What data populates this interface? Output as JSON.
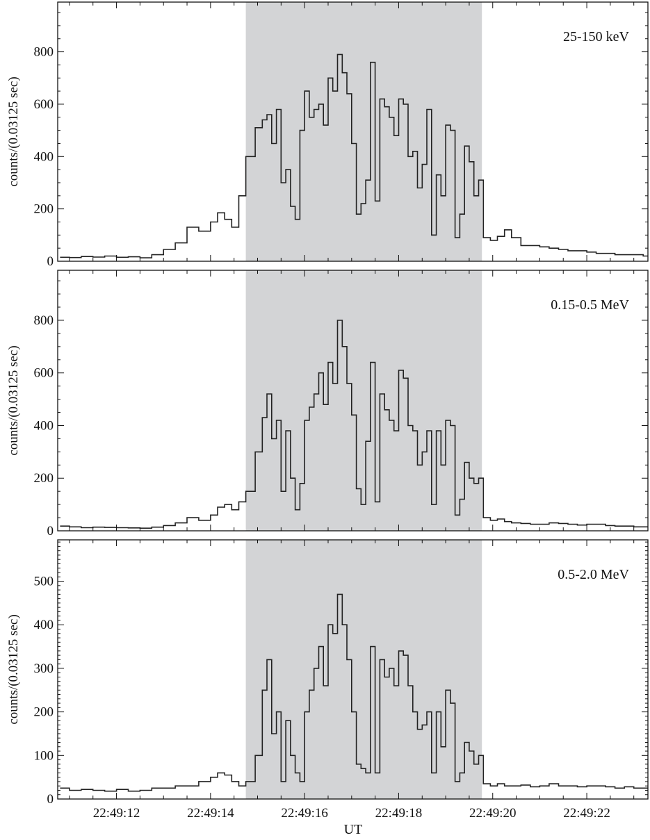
{
  "figure": {
    "ylabel": "counts/(0.03125 sec)",
    "xlabel": "UT",
    "x_tick_labels": [
      "22:49:12",
      "22:49:14",
      "22:49:16",
      "22:49:18",
      "22:49:20",
      "22:49:22"
    ],
    "highlight_color": "#d3d4d6",
    "line_color": "#222222"
  },
  "chart_data": [
    {
      "type": "line",
      "panel_label": "25-150 keV",
      "x_unit": "seconds after 22:49:00 UT",
      "xlim": [
        10.75,
        23.3
      ],
      "ylim": [
        0,
        990
      ],
      "yticks": [
        0,
        200,
        400,
        600,
        800
      ],
      "shaded_interval": [
        14.75,
        19.77
      ],
      "series": [
        {
          "x": [
            10.8,
            11.0,
            11.25,
            11.5,
            11.75,
            12.0,
            12.25,
            12.5,
            12.75,
            13.0,
            13.25,
            13.5,
            13.75,
            14.0,
            14.15,
            14.3,
            14.45,
            14.6,
            14.75,
            14.95,
            15.1,
            15.2,
            15.3,
            15.4,
            15.5,
            15.6,
            15.7,
            15.8,
            15.9,
            16.0,
            16.1,
            16.2,
            16.3,
            16.4,
            16.5,
            16.6,
            16.7,
            16.8,
            16.9,
            17.0,
            17.1,
            17.2,
            17.3,
            17.4,
            17.5,
            17.6,
            17.7,
            17.8,
            17.9,
            18.0,
            18.1,
            18.2,
            18.3,
            18.4,
            18.5,
            18.6,
            18.7,
            18.8,
            18.9,
            19.0,
            19.1,
            19.2,
            19.3,
            19.4,
            19.5,
            19.6,
            19.7,
            19.8,
            19.95,
            20.1,
            20.25,
            20.4,
            20.6,
            20.8,
            21.0,
            21.2,
            21.4,
            21.6,
            21.8,
            22.0,
            22.2,
            22.4,
            22.6,
            22.8,
            23.0,
            23.2
          ],
          "y": [
            15,
            14,
            18,
            16,
            20,
            15,
            17,
            13,
            25,
            45,
            70,
            130,
            115,
            150,
            185,
            160,
            130,
            250,
            400,
            510,
            540,
            560,
            450,
            580,
            300,
            350,
            210,
            160,
            500,
            650,
            550,
            580,
            600,
            520,
            700,
            650,
            790,
            720,
            640,
            450,
            180,
            220,
            310,
            760,
            230,
            620,
            590,
            550,
            480,
            620,
            600,
            400,
            420,
            280,
            370,
            580,
            100,
            330,
            250,
            520,
            500,
            90,
            180,
            440,
            380,
            250,
            310,
            90,
            80,
            95,
            120,
            90,
            60,
            60,
            55,
            50,
            45,
            40,
            40,
            35,
            30,
            30,
            25,
            25,
            25,
            20
          ]
        }
      ]
    },
    {
      "type": "line",
      "panel_label": "0.15-0.5 MeV",
      "x_unit": "seconds after 22:49:00 UT",
      "xlim": [
        10.75,
        23.3
      ],
      "ylim": [
        0,
        990
      ],
      "yticks": [
        0,
        200,
        400,
        600,
        800
      ],
      "shaded_interval": [
        14.75,
        19.77
      ],
      "series": [
        {
          "x": [
            10.8,
            11.0,
            11.25,
            11.5,
            11.75,
            12.0,
            12.25,
            12.5,
            12.75,
            13.0,
            13.25,
            13.5,
            13.75,
            14.0,
            14.15,
            14.3,
            14.45,
            14.6,
            14.75,
            14.95,
            15.1,
            15.2,
            15.3,
            15.4,
            15.5,
            15.6,
            15.7,
            15.8,
            15.9,
            16.0,
            16.1,
            16.2,
            16.3,
            16.4,
            16.5,
            16.6,
            16.7,
            16.8,
            16.9,
            17.0,
            17.1,
            17.2,
            17.3,
            17.4,
            17.5,
            17.6,
            17.7,
            17.8,
            17.9,
            18.0,
            18.1,
            18.2,
            18.3,
            18.4,
            18.5,
            18.6,
            18.7,
            18.8,
            18.9,
            19.0,
            19.1,
            19.2,
            19.3,
            19.4,
            19.5,
            19.6,
            19.7,
            19.8,
            19.95,
            20.1,
            20.25,
            20.4,
            20.6,
            20.8,
            21.0,
            21.2,
            21.4,
            21.6,
            21.8,
            22.0,
            22.2,
            22.4,
            22.6,
            22.8,
            23.0,
            23.2
          ],
          "y": [
            18,
            15,
            12,
            14,
            13,
            12,
            11,
            10,
            14,
            20,
            30,
            50,
            40,
            60,
            90,
            100,
            80,
            110,
            150,
            300,
            430,
            520,
            350,
            420,
            150,
            380,
            200,
            80,
            180,
            420,
            470,
            520,
            600,
            480,
            640,
            560,
            800,
            700,
            560,
            440,
            160,
            100,
            340,
            640,
            110,
            520,
            460,
            420,
            380,
            610,
            580,
            400,
            380,
            250,
            300,
            380,
            100,
            380,
            250,
            420,
            400,
            60,
            120,
            260,
            200,
            180,
            200,
            50,
            40,
            45,
            35,
            30,
            28,
            25,
            25,
            30,
            28,
            25,
            22,
            25,
            25,
            20,
            18,
            18,
            15,
            15
          ]
        }
      ]
    },
    {
      "type": "line",
      "panel_label": "0.5-2.0 MeV",
      "x_unit": "seconds after 22:49:00 UT",
      "xlim": [
        10.75,
        23.3
      ],
      "ylim": [
        0,
        595
      ],
      "yticks": [
        0,
        100,
        200,
        300,
        400,
        500
      ],
      "shaded_interval": [
        14.75,
        19.77
      ],
      "series": [
        {
          "x": [
            10.8,
            11.0,
            11.25,
            11.5,
            11.75,
            12.0,
            12.25,
            12.5,
            12.75,
            13.0,
            13.25,
            13.5,
            13.75,
            14.0,
            14.15,
            14.3,
            14.45,
            14.6,
            14.75,
            14.95,
            15.1,
            15.2,
            15.3,
            15.4,
            15.5,
            15.6,
            15.7,
            15.8,
            15.9,
            16.0,
            16.1,
            16.2,
            16.3,
            16.4,
            16.5,
            16.6,
            16.7,
            16.8,
            16.9,
            17.0,
            17.1,
            17.2,
            17.3,
            17.4,
            17.5,
            17.6,
            17.7,
            17.8,
            17.9,
            18.0,
            18.1,
            18.2,
            18.3,
            18.4,
            18.5,
            18.6,
            18.7,
            18.8,
            18.9,
            19.0,
            19.1,
            19.2,
            19.3,
            19.4,
            19.5,
            19.6,
            19.7,
            19.8,
            19.95,
            20.1,
            20.25,
            20.4,
            20.6,
            20.8,
            21.0,
            21.2,
            21.4,
            21.6,
            21.8,
            22.0,
            22.2,
            22.4,
            22.6,
            22.8,
            23.0,
            23.2
          ],
          "y": [
            25,
            20,
            22,
            20,
            18,
            22,
            18,
            20,
            25,
            25,
            30,
            30,
            40,
            50,
            60,
            55,
            40,
            30,
            40,
            100,
            250,
            320,
            150,
            200,
            40,
            180,
            100,
            60,
            40,
            200,
            250,
            300,
            350,
            260,
            400,
            380,
            470,
            400,
            320,
            200,
            80,
            70,
            60,
            350,
            60,
            320,
            280,
            300,
            260,
            340,
            330,
            260,
            200,
            160,
            170,
            200,
            60,
            200,
            120,
            250,
            220,
            40,
            60,
            130,
            110,
            80,
            100,
            35,
            30,
            35,
            30,
            30,
            32,
            28,
            30,
            35,
            30,
            30,
            28,
            30,
            30,
            28,
            25,
            28,
            25,
            25
          ]
        }
      ]
    }
  ]
}
